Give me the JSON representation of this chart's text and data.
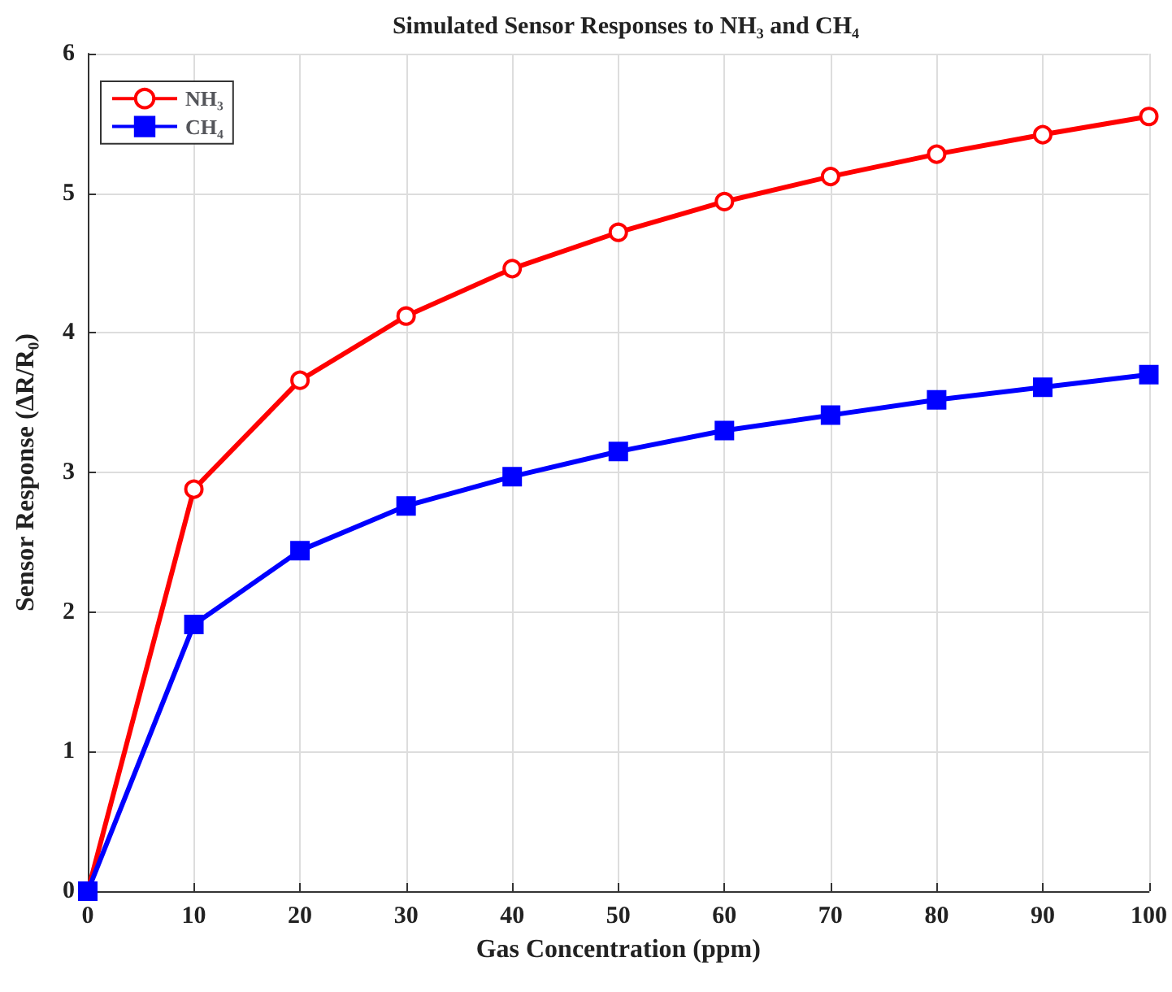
{
  "chart_data": {
    "type": "line",
    "title": "Simulated Sensor Responses to NH₃ and CH₄",
    "xlabel": "Gas Concentration (ppm)",
    "ylabel": "Sensor Response (ΔR/R₀)",
    "x": [
      0,
      10,
      20,
      30,
      40,
      50,
      60,
      70,
      80,
      90,
      100
    ],
    "series": [
      {
        "name": "NH₃",
        "color": "#ff0000",
        "marker": "circle",
        "values": [
          0,
          2.88,
          3.66,
          4.12,
          4.46,
          4.72,
          4.94,
          5.12,
          5.28,
          5.42,
          5.55
        ]
      },
      {
        "name": "CH₄",
        "color": "#0000ff",
        "marker": "square",
        "values": [
          0,
          1.91,
          2.44,
          2.76,
          2.97,
          3.15,
          3.3,
          3.41,
          3.52,
          3.61,
          3.7
        ]
      }
    ],
    "xlim": [
      0,
      100
    ],
    "xticks": [
      0,
      10,
      20,
      30,
      40,
      50,
      60,
      70,
      80,
      90,
      100
    ],
    "ylim": [
      0,
      6
    ],
    "yticks": [
      0,
      1,
      2,
      3,
      4,
      5,
      6
    ],
    "grid": true,
    "legend": "top left",
    "line_style": "solid"
  }
}
